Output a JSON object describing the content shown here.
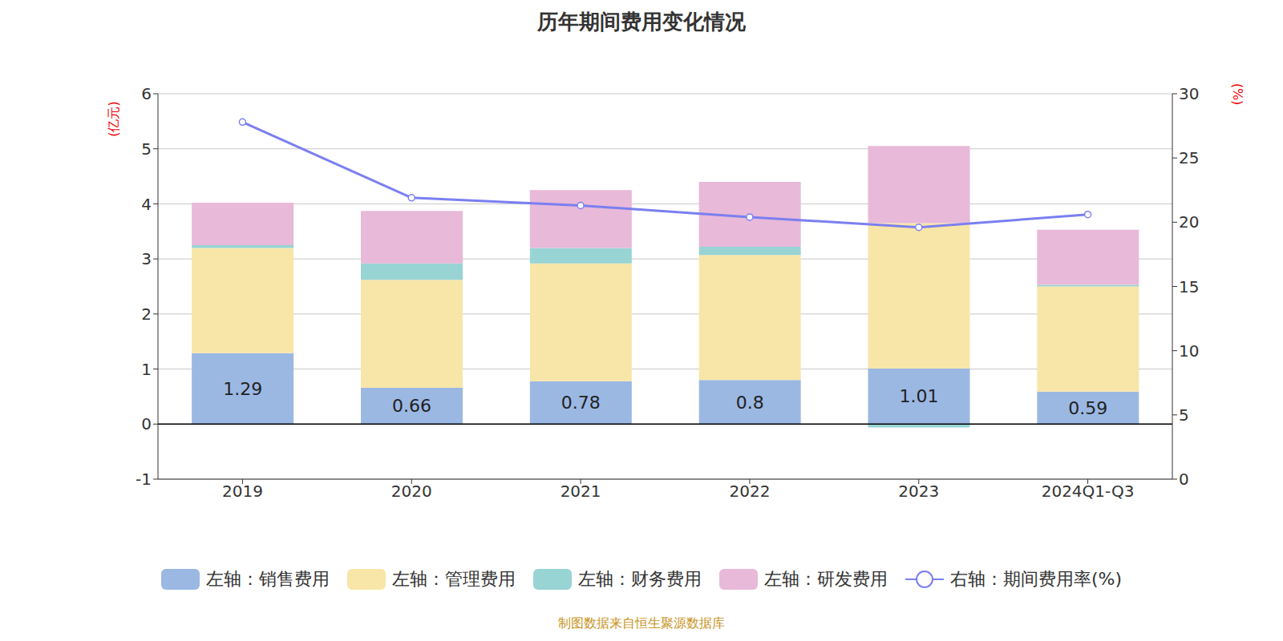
{
  "chart_data": {
    "type": "bar",
    "title": "历年期间费用变化情况",
    "y_label": "(亿元)",
    "y2_label": "(%)",
    "annotations": [
      "制图数据来自恒生聚源数据库"
    ],
    "categories": [
      "2019",
      "2020",
      "2021",
      "2022",
      "2023",
      "2024Q1-Q3"
    ],
    "stacked": true,
    "grid": true,
    "legend": "bottom",
    "series": [
      {
        "name": "左轴：销售费用",
        "color": "#9bb8e3",
        "type": "bar",
        "data_labels": true,
        "values": [
          1.29,
          0.66,
          0.78,
          0.8,
          1.01,
          0.59
        ]
      },
      {
        "name": "左轴：管理费用",
        "color": "#f8e6a8",
        "type": "bar",
        "values": [
          1.91,
          1.96,
          2.14,
          2.27,
          2.64,
          1.91
        ]
      },
      {
        "name": "左轴：财务费用",
        "color": "#98d4d4",
        "type": "bar",
        "values": [
          0.05,
          0.3,
          0.28,
          0.15,
          -0.06,
          0.03
        ]
      },
      {
        "name": "左轴：研发费用",
        "color": "#e8b9d9",
        "type": "bar",
        "values": [
          0.77,
          0.95,
          1.05,
          1.18,
          1.4,
          1.0
        ]
      },
      {
        "name": "右轴：期间费用率(%)",
        "color": "#7b7ff0",
        "type": "line",
        "axis": "y2",
        "marker": "circle",
        "values": [
          27.8,
          21.9,
          21.3,
          20.4,
          19.6,
          20.6
        ]
      }
    ],
    "ylim": [
      -1,
      6
    ],
    "yticks": [
      -1,
      0,
      1,
      2,
      3,
      4,
      5,
      6
    ],
    "y2lim": [
      0,
      30
    ],
    "y2ticks": [
      0,
      5,
      10,
      15,
      20,
      25,
      30
    ]
  }
}
